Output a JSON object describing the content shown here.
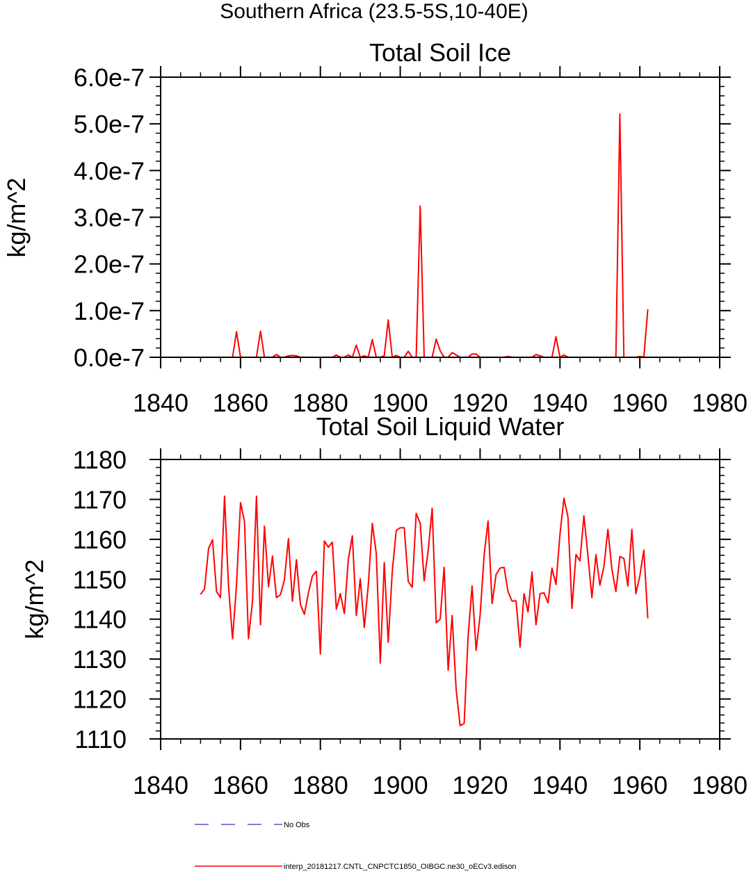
{
  "figure_title": "Southern Africa (23.5-5S,10-40E)",
  "legend": {
    "entries": [
      {
        "label": "No Obs",
        "color": "#3333cc",
        "style": "dashed"
      },
      {
        "label": "interp_20181217.CNTL_CNPCTC1850_OIBGC.ne30_oECv3.edison",
        "color": "#ff0000",
        "style": "solid"
      }
    ]
  },
  "chart_data": [
    {
      "type": "line",
      "title": "Total Soil Ice",
      "xlabel": "",
      "ylabel": "kg/m^2",
      "xlim": [
        1840,
        1980
      ],
      "ylim": [
        0,
        6e-07
      ],
      "xticks": [
        1840,
        1860,
        1880,
        1900,
        1920,
        1940,
        1960,
        1980
      ],
      "xtick_labels": [
        "1840",
        "1860",
        "1880",
        "1900",
        "1920",
        "1940",
        "1960",
        "1980"
      ],
      "yticks": [
        0,
        1e-07,
        2e-07,
        3e-07,
        4e-07,
        5e-07,
        6e-07
      ],
      "ytick_labels": [
        "0.0e-7",
        "1.0e-7",
        "2.0e-7",
        "3.0e-7",
        "4.0e-7",
        "5.0e-7",
        "6.0e-7"
      ],
      "grid": false,
      "series": [
        {
          "color": "#ff0000",
          "x": [
            1850,
            1851,
            1852,
            1853,
            1854,
            1855,
            1856,
            1857,
            1858,
            1859,
            1860,
            1861,
            1862,
            1863,
            1864,
            1865,
            1866,
            1867,
            1868,
            1869,
            1870,
            1871,
            1872,
            1873,
            1874,
            1875,
            1876,
            1877,
            1878,
            1879,
            1880,
            1881,
            1882,
            1883,
            1884,
            1885,
            1886,
            1887,
            1888,
            1889,
            1890,
            1891,
            1892,
            1893,
            1894,
            1895,
            1896,
            1897,
            1898,
            1899,
            1900,
            1901,
            1902,
            1903,
            1904,
            1905,
            1906,
            1907,
            1908,
            1909,
            1910,
            1911,
            1912,
            1913,
            1914,
            1915,
            1916,
            1917,
            1918,
            1919,
            1920,
            1921,
            1922,
            1923,
            1924,
            1925,
            1926,
            1927,
            1928,
            1929,
            1930,
            1931,
            1932,
            1933,
            1934,
            1935,
            1936,
            1937,
            1938,
            1939,
            1940,
            1941,
            1942,
            1943,
            1944,
            1945,
            1946,
            1947,
            1948,
            1949,
            1950,
            1951,
            1952,
            1953,
            1954,
            1955,
            1956,
            1957,
            1958,
            1959,
            1960,
            1961,
            1962
          ],
          "y": [
            0,
            0,
            0,
            0,
            0,
            0,
            0,
            0,
            0,
            5.5e-08,
            0,
            0,
            0,
            0,
            0,
            5.6e-08,
            0,
            0,
            0,
            6e-09,
            0,
            0,
            3e-09,
            4e-09,
            3e-09,
            0,
            0,
            0,
            0,
            0,
            0,
            0,
            0,
            0,
            5e-09,
            0,
            0,
            5e-09,
            0,
            2.6e-08,
            0,
            3e-09,
            0,
            3.8e-08,
            0,
            0,
            3e-09,
            8e-08,
            0,
            4e-09,
            0,
            0,
            1.3e-08,
            0,
            0,
            3.24e-07,
            0,
            0,
            0,
            3.9e-08,
            1.4e-08,
            0,
            0,
            1e-08,
            5e-09,
            0,
            0,
            0,
            7e-09,
            7e-09,
            0,
            0,
            0,
            0,
            0,
            0,
            0,
            2e-09,
            0,
            0,
            0,
            0,
            0,
            0,
            6e-09,
            3e-09,
            0,
            0,
            0,
            4.4e-08,
            0,
            5e-09,
            0,
            0,
            0,
            0,
            0,
            0,
            0,
            0,
            0,
            0,
            0,
            0,
            0,
            5.21e-07,
            0,
            0,
            0,
            0,
            2e-09,
            0,
            1.03e-07
          ]
        }
      ]
    },
    {
      "type": "line",
      "title": "Total Soil Liquid Water",
      "xlabel": "",
      "ylabel": "kg/m^2",
      "xlim": [
        1840,
        1980
      ],
      "ylim": [
        1110,
        1180
      ],
      "xticks": [
        1840,
        1860,
        1880,
        1900,
        1920,
        1940,
        1960,
        1980
      ],
      "xtick_labels": [
        "1840",
        "1860",
        "1880",
        "1900",
        "1920",
        "1940",
        "1960",
        "1980"
      ],
      "yticks": [
        1110,
        1120,
        1130,
        1140,
        1150,
        1160,
        1170,
        1180
      ],
      "ytick_labels": [
        "1110",
        "1120",
        "1130",
        "1140",
        "1150",
        "1160",
        "1170",
        "1180"
      ],
      "grid": false,
      "series": [
        {
          "color": "#ff0000",
          "x": [
            1850,
            1851,
            1852,
            1853,
            1854,
            1855,
            1856,
            1857,
            1858,
            1859,
            1860,
            1861,
            1862,
            1863,
            1864,
            1865,
            1866,
            1867,
            1868,
            1869,
            1870,
            1871,
            1872,
            1873,
            1874,
            1875,
            1876,
            1877,
            1878,
            1879,
            1880,
            1881,
            1882,
            1883,
            1884,
            1885,
            1886,
            1887,
            1888,
            1889,
            1890,
            1891,
            1892,
            1893,
            1894,
            1895,
            1896,
            1897,
            1898,
            1899,
            1900,
            1901,
            1902,
            1903,
            1904,
            1905,
            1906,
            1907,
            1908,
            1909,
            1910,
            1911,
            1912,
            1913,
            1914,
            1915,
            1916,
            1917,
            1918,
            1919,
            1920,
            1921,
            1922,
            1923,
            1924,
            1925,
            1926,
            1927,
            1928,
            1929,
            1930,
            1931,
            1932,
            1933,
            1934,
            1935,
            1936,
            1937,
            1938,
            1939,
            1940,
            1941,
            1942,
            1943,
            1944,
            1945,
            1946,
            1947,
            1948,
            1949,
            1950,
            1951,
            1952,
            1953,
            1954,
            1955,
            1956,
            1957,
            1958,
            1959,
            1960,
            1961,
            1962
          ],
          "y": [
            1146.2,
            1147.6,
            1157.7,
            1159.9,
            1146.9,
            1145.4,
            1170.8,
            1148.3,
            1135.1,
            1148.5,
            1169.2,
            1164.4,
            1135.1,
            1144.5,
            1170.8,
            1138.6,
            1163.3,
            1148.1,
            1155.8,
            1145.4,
            1146.1,
            1149.9,
            1160.2,
            1144.5,
            1154.9,
            1143.7,
            1141.2,
            1146.6,
            1150.8,
            1152.0,
            1131.3,
            1159.6,
            1158.0,
            1159.3,
            1142.5,
            1146.4,
            1141.4,
            1154.9,
            1160.9,
            1140.9,
            1150.1,
            1137.9,
            1148.5,
            1164.0,
            1156.5,
            1129.0,
            1154.2,
            1134.2,
            1151.9,
            1162.2,
            1162.9,
            1162.9,
            1149.4,
            1148.0,
            1166.5,
            1164.0,
            1149.6,
            1157.3,
            1167.8,
            1139.1,
            1140.0,
            1153.0,
            1127.2,
            1140.9,
            1122.3,
            1113.3,
            1113.9,
            1135.8,
            1148.3,
            1132.2,
            1140.9,
            1156.0,
            1164.6,
            1143.9,
            1151.2,
            1152.8,
            1153.0,
            1146.9,
            1144.5,
            1144.6,
            1133.0,
            1146.4,
            1141.8,
            1151.8,
            1138.6,
            1146.4,
            1146.6,
            1144.1,
            1152.8,
            1148.7,
            1161.3,
            1170.3,
            1165.6,
            1142.7,
            1156.2,
            1154.6,
            1165.9,
            1155.9,
            1145.4,
            1156.2,
            1148.5,
            1153.2,
            1162.5,
            1152.6,
            1146.9,
            1155.7,
            1155.2,
            1148.3,
            1162.5,
            1146.4,
            1150.8,
            1157.3,
            1140.2
          ]
        }
      ]
    }
  ]
}
